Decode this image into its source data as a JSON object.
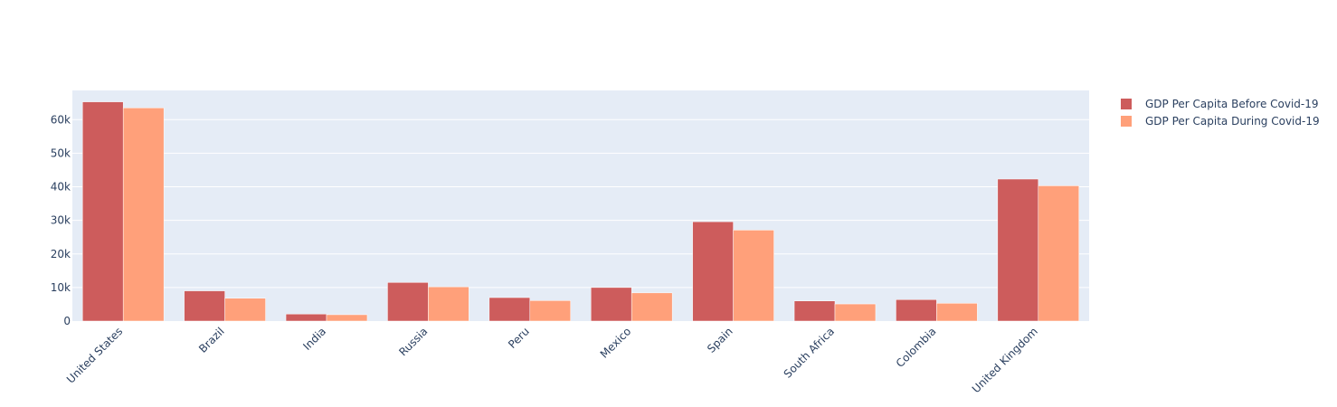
{
  "chart_data": {
    "type": "bar",
    "barmode": "group",
    "categories": [
      "United States",
      "Brazil",
      "India",
      "Russia",
      "Peru",
      "Mexico",
      "Spain",
      "South Africa",
      "Colombia",
      "United Kingdom"
    ],
    "series": [
      {
        "name": "GDP Per Capita Before Covid-19",
        "color": "#cd5c5c",
        "values": [
          65300,
          9000,
          2100,
          11500,
          7000,
          10000,
          29600,
          6000,
          6400,
          42300
        ]
      },
      {
        "name": "GDP Per Capita During Covid-19",
        "color": "#ffa07a",
        "values": [
          63500,
          6800,
          1900,
          10200,
          6100,
          8400,
          27100,
          5100,
          5300,
          40300
        ]
      }
    ],
    "ylim": [
      0,
      68700
    ],
    "yticks": [
      0,
      10000,
      20000,
      30000,
      40000,
      50000,
      60000
    ],
    "ytick_labels": [
      "0",
      "10k",
      "20k",
      "30k",
      "40k",
      "50k",
      "60k"
    ],
    "grid": true,
    "plot_background": "#e5ecf6",
    "legend_position": "top-right"
  }
}
